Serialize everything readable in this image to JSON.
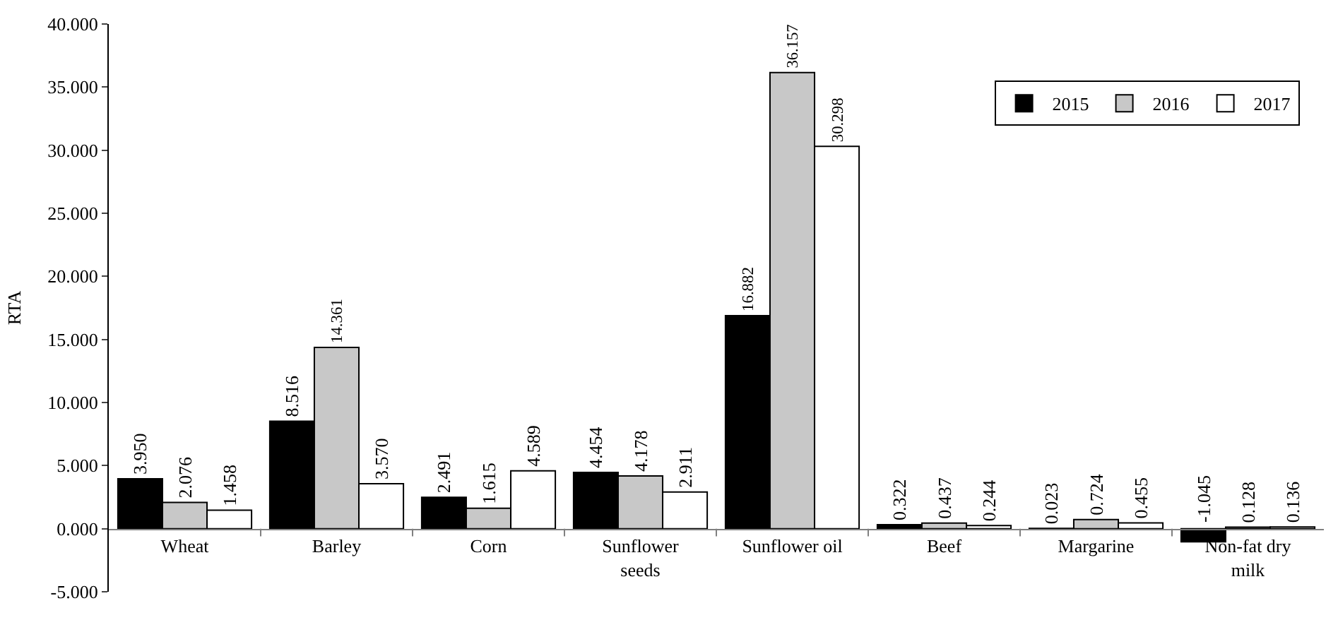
{
  "chart_data": {
    "type": "bar",
    "ylabel": "RTA",
    "categories": [
      "Wheat",
      "Barley",
      "Corn",
      "Sunflower seeds",
      "Sunflower oil",
      "Beef",
      "Margarine",
      "Non-fat dry milk"
    ],
    "series": [
      {
        "name": "2015",
        "color": "#000000",
        "values": [
          3.95,
          8.516,
          2.491,
          4.454,
          16.882,
          0.322,
          0.023,
          -1.045
        ],
        "value_labels": [
          "3.950",
          "8.516",
          "2.491",
          "4.454",
          "16.882",
          "0.322",
          "0.023",
          "-1.045"
        ]
      },
      {
        "name": "2016",
        "color": "#c8c8c8",
        "values": [
          2.076,
          14.361,
          1.615,
          4.178,
          36.157,
          0.437,
          0.724,
          0.128
        ],
        "value_labels": [
          "2.076",
          "14.361",
          "1.615",
          "4.178",
          "36.157",
          "0.437",
          "0.724",
          "0.128"
        ]
      },
      {
        "name": "2017",
        "color": "#ffffff",
        "values": [
          1.458,
          3.57,
          4.589,
          2.911,
          30.298,
          0.244,
          0.455,
          0.136
        ],
        "value_labels": [
          "1.458",
          "3.570",
          "4.589",
          "2.911",
          "30.298",
          "0.244",
          "0.455",
          "0.136"
        ]
      }
    ],
    "ylim": [
      -5,
      40
    ],
    "yticks": [
      {
        "value": -5,
        "label": "-5.000"
      },
      {
        "value": 0,
        "label": "0.000"
      },
      {
        "value": 5,
        "label": "5.000"
      },
      {
        "value": 10,
        "label": "10.000"
      },
      {
        "value": 15,
        "label": "15.000"
      },
      {
        "value": 20,
        "label": "20.000"
      },
      {
        "value": 25,
        "label": "25.000"
      },
      {
        "value": 30,
        "label": "30.000"
      },
      {
        "value": 35,
        "label": "35.000"
      },
      {
        "value": 40,
        "label": "40.000"
      }
    ],
    "legend": "top right"
  }
}
